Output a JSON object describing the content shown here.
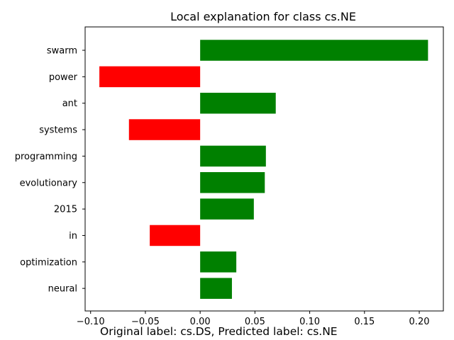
{
  "chart_data": {
    "type": "bar",
    "orientation": "horizontal",
    "title": "Local explanation for class cs.NE",
    "xlabel": "",
    "ylabel": "",
    "xlim": [
      -0.105,
      0.222
    ],
    "grid": false,
    "legend": "none",
    "categories": [
      "swarm",
      "power",
      "ant",
      "systems",
      "programming",
      "evolutionary",
      "2015",
      "in",
      "optimization",
      "neural"
    ],
    "values": [
      0.208,
      -0.092,
      0.069,
      -0.065,
      0.06,
      0.059,
      0.049,
      -0.046,
      0.033,
      0.029
    ],
    "x_ticks": [
      -0.1,
      -0.05,
      0.0,
      0.05,
      0.1,
      0.15,
      0.2
    ],
    "x_tick_labels": [
      "−0.10",
      "−0.05",
      "0.00",
      "0.05",
      "0.10",
      "0.15",
      "0.20"
    ],
    "colors": {
      "positive": "#008000",
      "negative": "#ff0000"
    }
  },
  "caption": "Original label: cs.DS, Predicted label: cs.NE"
}
